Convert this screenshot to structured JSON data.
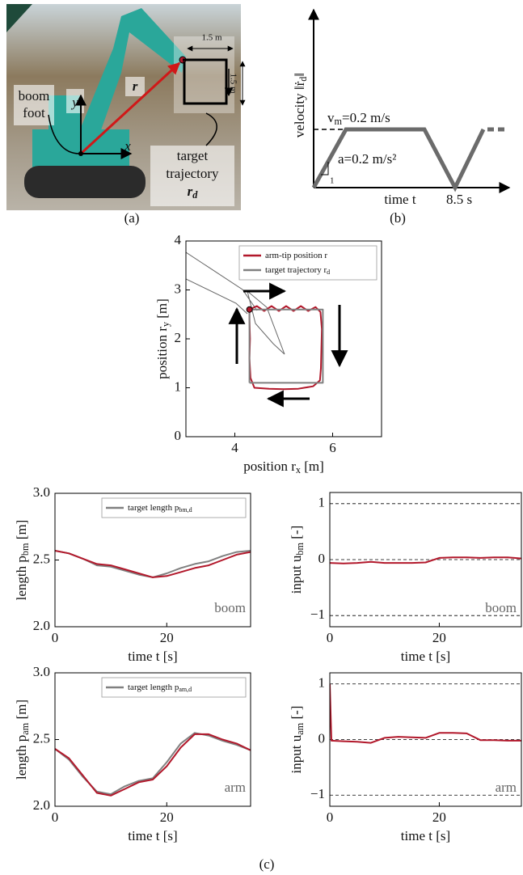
{
  "panel_a": {
    "width_label": "1.5 m",
    "height_label": "1.5 m",
    "r": "r",
    "boom_foot": [
      "boom",
      "foot"
    ],
    "y": "y",
    "x": "x",
    "target": [
      "target",
      "trajectory"
    ],
    "r_d": {
      "text": "r",
      "sub": "d"
    },
    "caption": "(a)"
  },
  "panel_b": {
    "ylabel": {
      "text": "velocity ‖ṙ",
      "sub": "d",
      "unit": "‖"
    },
    "vm": {
      "text": "v",
      "sub": "m",
      "unit": "=0.2 m/s"
    },
    "accel": "a=0.2 m/s²",
    "slope": "1",
    "xlabel": "time t",
    "t_end": "8.5 s",
    "caption": "(b)"
  },
  "chart_data": [
    {
      "type": "line",
      "xlabel": {
        "text": "position r",
        "sub": "x",
        "unit": " [m]"
      },
      "ylabel": {
        "text": "position r",
        "sub": "y",
        "unit": " [m]"
      },
      "xlim": [
        3,
        7
      ],
      "ylim": [
        0,
        4
      ],
      "xticks": [
        4,
        6
      ],
      "yticks": [
        0,
        1,
        2,
        3,
        4
      ],
      "legend": "upper right",
      "series": [
        {
          "name": "arm-tip position r",
          "color": "#b2182b",
          "x": [
            4.3,
            4.45,
            4.6,
            4.75,
            4.9,
            5.05,
            5.2,
            5.35,
            5.5,
            5.65,
            5.75,
            5.78,
            5.77,
            5.76,
            5.74,
            5.6,
            5.3,
            5.0,
            4.7,
            4.4,
            4.32,
            4.3,
            4.31,
            4.3,
            4.3
          ],
          "values": [
            2.6,
            2.67,
            2.57,
            2.67,
            2.57,
            2.67,
            2.57,
            2.67,
            2.57,
            2.65,
            2.55,
            2.2,
            1.8,
            1.4,
            1.15,
            1.03,
            0.98,
            0.97,
            0.98,
            1.0,
            1.2,
            1.6,
            2.0,
            2.4,
            2.6
          ]
        },
        {
          "name": "target trajectory r",
          "name_sub": "d",
          "color": "#808080",
          "x": [
            4.3,
            4.3,
            5.8,
            5.8,
            4.3
          ],
          "values": [
            1.1,
            2.6,
            2.6,
            1.1,
            1.1
          ]
        }
      ]
    },
    {
      "type": "line",
      "xlabel": "time t [s]",
      "ylabel": {
        "text": "length p",
        "sub": "bm",
        "unit": " [m]"
      },
      "xlim": [
        0,
        35
      ],
      "ylim": [
        2,
        3
      ],
      "xticks": [
        0,
        20
      ],
      "yticks": [
        {
          "value": 2,
          "label": "2.0"
        },
        2.5,
        {
          "value": 3,
          "label": "3.0"
        }
      ],
      "annotation": "boom",
      "legend": "upper right",
      "series": [
        {
          "name": "target length p",
          "name_sub": "bm,d",
          "color": "#808080",
          "x": [
            0,
            2.5,
            5,
            7.5,
            10,
            12.5,
            15,
            17.5,
            20,
            22.5,
            25,
            27.5,
            30,
            32.5,
            35
          ],
          "values": [
            2.57,
            2.55,
            2.51,
            2.46,
            2.45,
            2.42,
            2.39,
            2.37,
            2.4,
            2.44,
            2.47,
            2.49,
            2.53,
            2.56,
            2.57
          ]
        },
        {
          "color": "#b2182b",
          "x": [
            0,
            2.5,
            5,
            7.5,
            10,
            12.5,
            15,
            17.5,
            20,
            22.5,
            25,
            27.5,
            30,
            32.5,
            35
          ],
          "values": [
            2.57,
            2.55,
            2.51,
            2.47,
            2.46,
            2.43,
            2.4,
            2.37,
            2.38,
            2.41,
            2.44,
            2.46,
            2.5,
            2.54,
            2.56
          ]
        }
      ]
    },
    {
      "type": "line",
      "xlabel": "time t [s]",
      "ylabel": {
        "text": "input u",
        "sub": "bm",
        "unit": " [-]"
      },
      "xlim": [
        0,
        35
      ],
      "ylim": [
        -1.2,
        1.2
      ],
      "xticks": [
        0,
        20
      ],
      "yticks": [
        {
          "value": -1,
          "label": "−1"
        },
        0,
        1
      ],
      "grid": true,
      "annotation": "boom",
      "series": [
        {
          "color": "#b2182b",
          "x": [
            0,
            2.5,
            5,
            7.5,
            10,
            12.5,
            15,
            17.5,
            20,
            22.5,
            25,
            27.5,
            30,
            32.5,
            35
          ],
          "values": [
            -0.06,
            -0.07,
            -0.06,
            -0.04,
            -0.06,
            -0.06,
            -0.06,
            -0.05,
            0.03,
            0.04,
            0.04,
            0.03,
            0.04,
            0.04,
            0.02
          ]
        }
      ]
    },
    {
      "type": "line",
      "xlabel": "time t [s]",
      "ylabel": {
        "text": "length p",
        "sub": "am",
        "unit": " [m]"
      },
      "xlim": [
        0,
        35
      ],
      "ylim": [
        2,
        3
      ],
      "xticks": [
        0,
        20
      ],
      "yticks": [
        {
          "value": 2,
          "label": "2.0"
        },
        2.5,
        {
          "value": 3,
          "label": "3.0"
        }
      ],
      "annotation": "arm",
      "legend": "upper right",
      "series": [
        {
          "name": "target length p",
          "name_sub": "am,d",
          "color": "#808080",
          "x": [
            0,
            2.5,
            5,
            7.5,
            10,
            12.5,
            15,
            17.5,
            20,
            22.5,
            25,
            27.5,
            30,
            32.5,
            35
          ],
          "values": [
            2.43,
            2.35,
            2.22,
            2.11,
            2.09,
            2.15,
            2.19,
            2.21,
            2.33,
            2.47,
            2.55,
            2.53,
            2.49,
            2.46,
            2.42
          ]
        },
        {
          "color": "#b2182b",
          "x": [
            0,
            2.5,
            5,
            7.5,
            10,
            12.5,
            15,
            17.5,
            20,
            22.5,
            25,
            27.5,
            30,
            32.5,
            35
          ],
          "values": [
            2.43,
            2.36,
            2.23,
            2.1,
            2.08,
            2.13,
            2.18,
            2.2,
            2.3,
            2.44,
            2.54,
            2.54,
            2.5,
            2.47,
            2.42
          ]
        }
      ]
    },
    {
      "type": "line",
      "xlabel": "time t [s]",
      "ylabel": {
        "text": "input u",
        "sub": "am",
        "unit": " [-]"
      },
      "xlim": [
        0,
        35
      ],
      "ylim": [
        -1.2,
        1.2
      ],
      "xticks": [
        0,
        20
      ],
      "yticks": [
        {
          "value": -1,
          "label": "−1"
        },
        0,
        1
      ],
      "grid": true,
      "annotation": "arm",
      "series": [
        {
          "color": "#b2182b",
          "x": [
            0,
            0.3,
            2.5,
            5,
            7.5,
            10,
            12.5,
            15,
            17.5,
            20,
            22.5,
            25,
            27.5,
            30,
            32.5,
            35
          ],
          "values": [
            1.0,
            -0.02,
            -0.03,
            -0.04,
            -0.06,
            0.03,
            0.05,
            0.04,
            0.03,
            0.12,
            0.12,
            0.11,
            -0.01,
            -0.01,
            -0.02,
            -0.02
          ]
        }
      ]
    }
  ],
  "caption_c": "(c)"
}
